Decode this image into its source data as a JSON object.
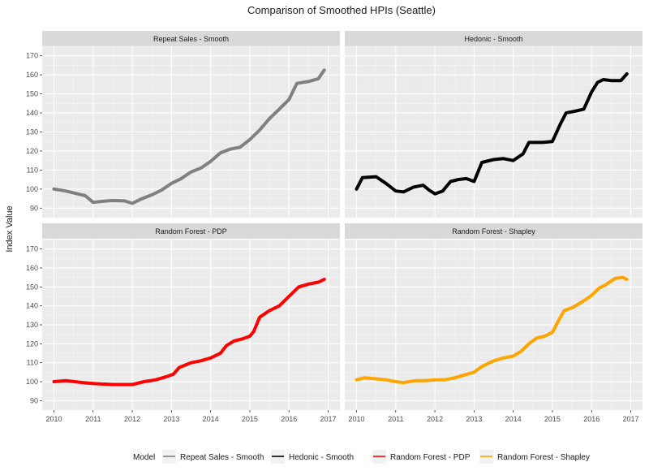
{
  "chart_data": {
    "type": "line",
    "title": "Comparison of Smoothed HPIs (Seattle)",
    "ylabel": "Index Value",
    "xlabel": "",
    "xlim": [
      2009.7,
      2017.3
    ],
    "ylim": [
      85,
      175
    ],
    "x_ticks": [
      "2010",
      "2011",
      "2012",
      "2013",
      "2014",
      "2015",
      "2016",
      "2017"
    ],
    "y_ticks": [
      "90",
      "100",
      "110",
      "120",
      "130",
      "140",
      "150",
      "160",
      "170"
    ],
    "grid": true,
    "legend_position": "bottom",
    "legend_title": "Model",
    "facets": [
      {
        "strip": "Repeat Sales - Smooth",
        "color": "#808080",
        "points": [
          [
            2010.0,
            100
          ],
          [
            2010.3,
            99
          ],
          [
            2010.6,
            97.5
          ],
          [
            2010.8,
            96.5
          ],
          [
            2011.0,
            93
          ],
          [
            2011.2,
            93.5
          ],
          [
            2011.5,
            94
          ],
          [
            2011.8,
            93.8
          ],
          [
            2012.0,
            92.5
          ],
          [
            2012.25,
            95
          ],
          [
            2012.5,
            97
          ],
          [
            2012.75,
            99.5
          ],
          [
            2013.0,
            103
          ],
          [
            2013.25,
            105.5
          ],
          [
            2013.5,
            109
          ],
          [
            2013.75,
            111
          ],
          [
            2014.0,
            114.5
          ],
          [
            2014.25,
            119
          ],
          [
            2014.5,
            121
          ],
          [
            2014.75,
            122
          ],
          [
            2015.0,
            126
          ],
          [
            2015.25,
            131
          ],
          [
            2015.5,
            137
          ],
          [
            2015.75,
            142
          ],
          [
            2016.0,
            147
          ],
          [
            2016.2,
            155.5
          ],
          [
            2016.5,
            156.5
          ],
          [
            2016.75,
            158
          ],
          [
            2016.9,
            162.5
          ]
        ]
      },
      {
        "strip": "Hedonic - Smooth",
        "color": "#000000",
        "points": [
          [
            2010.0,
            100
          ],
          [
            2010.15,
            106
          ],
          [
            2010.5,
            106.5
          ],
          [
            2010.75,
            103
          ],
          [
            2011.0,
            99
          ],
          [
            2011.2,
            98.5
          ],
          [
            2011.45,
            101
          ],
          [
            2011.7,
            102
          ],
          [
            2011.85,
            99.5
          ],
          [
            2012.0,
            97.5
          ],
          [
            2012.2,
            99
          ],
          [
            2012.4,
            104
          ],
          [
            2012.6,
            105
          ],
          [
            2012.8,
            105.5
          ],
          [
            2013.0,
            104
          ],
          [
            2013.2,
            114
          ],
          [
            2013.5,
            115.5
          ],
          [
            2013.75,
            116
          ],
          [
            2014.0,
            115
          ],
          [
            2014.25,
            118.5
          ],
          [
            2014.4,
            124.5
          ],
          [
            2014.6,
            124.5
          ],
          [
            2014.75,
            124.5
          ],
          [
            2015.0,
            125
          ],
          [
            2015.2,
            134
          ],
          [
            2015.35,
            140
          ],
          [
            2015.6,
            141
          ],
          [
            2015.8,
            142
          ],
          [
            2016.0,
            151
          ],
          [
            2016.15,
            156
          ],
          [
            2016.3,
            157.5
          ],
          [
            2016.5,
            157
          ],
          [
            2016.75,
            157
          ],
          [
            2016.9,
            160.5
          ]
        ]
      },
      {
        "strip": "Random Forest - PDP",
        "color": "#ff0000",
        "points": [
          [
            2010.0,
            100
          ],
          [
            2010.3,
            100.5
          ],
          [
            2010.75,
            99.5
          ],
          [
            2011.0,
            99
          ],
          [
            2011.5,
            98.5
          ],
          [
            2012.0,
            98.5
          ],
          [
            2012.3,
            100
          ],
          [
            2012.6,
            101
          ],
          [
            2012.85,
            102.5
          ],
          [
            2013.05,
            104
          ],
          [
            2013.2,
            107.5
          ],
          [
            2013.5,
            110
          ],
          [
            2013.75,
            111
          ],
          [
            2014.0,
            112.5
          ],
          [
            2014.25,
            115
          ],
          [
            2014.4,
            119
          ],
          [
            2014.6,
            121.5
          ],
          [
            2014.8,
            122.5
          ],
          [
            2015.0,
            124
          ],
          [
            2015.1,
            126.5
          ],
          [
            2015.25,
            134
          ],
          [
            2015.5,
            137.5
          ],
          [
            2015.75,
            140
          ],
          [
            2016.0,
            145
          ],
          [
            2016.25,
            150
          ],
          [
            2016.5,
            151.5
          ],
          [
            2016.75,
            152.5
          ],
          [
            2016.9,
            154
          ]
        ]
      },
      {
        "strip": "Random Forest - Shapley",
        "color": "#ffa500",
        "points": [
          [
            2010.0,
            101
          ],
          [
            2010.2,
            102
          ],
          [
            2010.5,
            101.5
          ],
          [
            2010.75,
            101
          ],
          [
            2011.0,
            100
          ],
          [
            2011.2,
            99.5
          ],
          [
            2011.5,
            100.5
          ],
          [
            2011.75,
            100.5
          ],
          [
            2012.0,
            101
          ],
          [
            2012.25,
            101
          ],
          [
            2012.5,
            102
          ],
          [
            2012.75,
            103.5
          ],
          [
            2013.0,
            105
          ],
          [
            2013.2,
            108
          ],
          [
            2013.5,
            111
          ],
          [
            2013.75,
            112.5
          ],
          [
            2014.0,
            113.5
          ],
          [
            2014.2,
            116
          ],
          [
            2014.4,
            120
          ],
          [
            2014.6,
            123
          ],
          [
            2014.8,
            124
          ],
          [
            2015.0,
            126
          ],
          [
            2015.15,
            132
          ],
          [
            2015.3,
            137.5
          ],
          [
            2015.5,
            139
          ],
          [
            2015.75,
            142
          ],
          [
            2016.0,
            145.5
          ],
          [
            2016.2,
            149.5
          ],
          [
            2016.35,
            151
          ],
          [
            2016.6,
            154.5
          ],
          [
            2016.8,
            155
          ],
          [
            2016.9,
            154
          ]
        ]
      }
    ],
    "legend": [
      {
        "label": "Repeat Sales - Smooth",
        "color": "#808080"
      },
      {
        "label": "Hedonic - Smooth",
        "color": "#000000"
      },
      {
        "label": "Random Forest - PDP",
        "color": "#ff0000"
      },
      {
        "label": "Random Forest - Shapley",
        "color": "#ffa500"
      }
    ]
  }
}
